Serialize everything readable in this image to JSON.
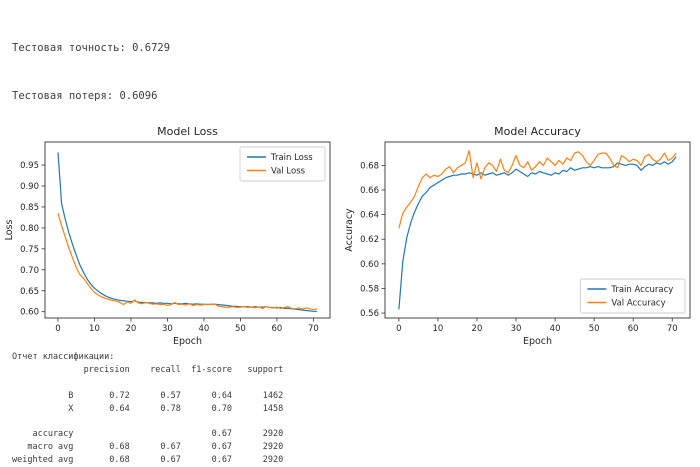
{
  "header": {
    "lines": [
      "Тестовая точность: 0.6729",
      "Тестовая потеря: 0.6096"
    ]
  },
  "colors": {
    "train": "#1f77b4",
    "val": "#ff7f0e",
    "axis_text": "#262626",
    "spine": "#333333",
    "legend_border": "#cccccc"
  },
  "chart_data": [
    {
      "type": "line",
      "title": "Model Loss",
      "xlabel": "Epoch",
      "ylabel": "Loss",
      "xlim": [
        -3.55,
        74.55
      ],
      "ylim": [
        0.585,
        1.005
      ],
      "xticks": [
        0,
        10,
        20,
        30,
        40,
        50,
        60,
        70
      ],
      "yticks": [
        0.6,
        0.65,
        0.7,
        0.75,
        0.8,
        0.85,
        0.9,
        0.95
      ],
      "grid": false,
      "legend_position": "upper-right",
      "x_start": 0,
      "x_step": 1,
      "series": [
        {
          "name": "Train Loss",
          "color": "#1f77b4",
          "values": [
            0.98,
            0.858,
            0.82,
            0.788,
            0.76,
            0.735,
            0.712,
            0.694,
            0.678,
            0.666,
            0.656,
            0.649,
            0.643,
            0.638,
            0.634,
            0.631,
            0.629,
            0.627,
            0.626,
            0.625,
            0.624,
            0.626,
            0.623,
            0.622,
            0.622,
            0.621,
            0.621,
            0.62,
            0.621,
            0.62,
            0.62,
            0.619,
            0.62,
            0.619,
            0.619,
            0.62,
            0.619,
            0.618,
            0.619,
            0.618,
            0.618,
            0.617,
            0.618,
            0.618,
            0.617,
            0.616,
            0.615,
            0.614,
            0.613,
            0.613,
            0.612,
            0.612,
            0.612,
            0.611,
            0.612,
            0.611,
            0.611,
            0.612,
            0.61,
            0.61,
            0.609,
            0.61,
            0.608,
            0.608,
            0.607,
            0.606,
            0.605,
            0.604,
            0.603,
            0.602,
            0.601,
            0.601
          ]
        },
        {
          "name": "Val Loss",
          "color": "#ff7f0e",
          "values": [
            0.835,
            0.805,
            0.778,
            0.752,
            0.728,
            0.706,
            0.689,
            0.68,
            0.668,
            0.656,
            0.646,
            0.64,
            0.635,
            0.632,
            0.629,
            0.627,
            0.625,
            0.622,
            0.617,
            0.624,
            0.62,
            0.628,
            0.621,
            0.619,
            0.622,
            0.62,
            0.618,
            0.619,
            0.617,
            0.618,
            0.615,
            0.617,
            0.622,
            0.617,
            0.618,
            0.616,
            0.619,
            0.615,
            0.617,
            0.616,
            0.617,
            0.618,
            0.617,
            0.618,
            0.613,
            0.612,
            0.61,
            0.611,
            0.612,
            0.61,
            0.611,
            0.612,
            0.61,
            0.611,
            0.609,
            0.612,
            0.608,
            0.612,
            0.61,
            0.609,
            0.611,
            0.608,
            0.61,
            0.612,
            0.608,
            0.607,
            0.609,
            0.606,
            0.609,
            0.607,
            0.605,
            0.607
          ]
        }
      ]
    },
    {
      "type": "line",
      "title": "Model Accuracy",
      "xlabel": "Epoch",
      "ylabel": "Accuracy",
      "xlim": [
        -3.55,
        74.55
      ],
      "ylim": [
        0.556,
        0.699
      ],
      "xticks": [
        0,
        10,
        20,
        30,
        40,
        50,
        60,
        70
      ],
      "yticks": [
        0.56,
        0.58,
        0.6,
        0.62,
        0.64,
        0.66,
        0.68
      ],
      "grid": false,
      "legend_position": "lower-right",
      "x_start": 0,
      "x_step": 1,
      "series": [
        {
          "name": "Train Accuracy",
          "color": "#1f77b4",
          "values": [
            0.563,
            0.602,
            0.621,
            0.633,
            0.642,
            0.649,
            0.655,
            0.658,
            0.662,
            0.664,
            0.666,
            0.668,
            0.67,
            0.671,
            0.672,
            0.672,
            0.673,
            0.673,
            0.674,
            0.673,
            0.672,
            0.674,
            0.672,
            0.673,
            0.674,
            0.672,
            0.673,
            0.674,
            0.672,
            0.674,
            0.677,
            0.675,
            0.673,
            0.671,
            0.674,
            0.673,
            0.675,
            0.674,
            0.673,
            0.672,
            0.674,
            0.673,
            0.676,
            0.675,
            0.678,
            0.676,
            0.677,
            0.678,
            0.678,
            0.679,
            0.678,
            0.679,
            0.678,
            0.678,
            0.678,
            0.679,
            0.682,
            0.681,
            0.68,
            0.681,
            0.681,
            0.68,
            0.676,
            0.679,
            0.681,
            0.68,
            0.682,
            0.681,
            0.683,
            0.681,
            0.683,
            0.687
          ]
        },
        {
          "name": "Val Accuracy",
          "color": "#ff7f0e",
          "values": [
            0.629,
            0.641,
            0.646,
            0.65,
            0.655,
            0.663,
            0.67,
            0.673,
            0.67,
            0.672,
            0.671,
            0.673,
            0.677,
            0.679,
            0.674,
            0.678,
            0.68,
            0.682,
            0.692,
            0.67,
            0.682,
            0.669,
            0.678,
            0.682,
            0.68,
            0.675,
            0.685,
            0.676,
            0.674,
            0.68,
            0.688,
            0.68,
            0.678,
            0.683,
            0.676,
            0.679,
            0.683,
            0.68,
            0.686,
            0.683,
            0.68,
            0.684,
            0.681,
            0.686,
            0.684,
            0.69,
            0.691,
            0.688,
            0.683,
            0.68,
            0.684,
            0.689,
            0.69,
            0.69,
            0.686,
            0.68,
            0.678,
            0.688,
            0.686,
            0.683,
            0.685,
            0.684,
            0.68,
            0.687,
            0.689,
            0.685,
            0.683,
            0.685,
            0.69,
            0.684,
            0.686,
            0.69
          ]
        }
      ]
    }
  ],
  "report": {
    "title": "Отчет классификации:",
    "columns": [
      "precision",
      "recall",
      "f1-score",
      "support"
    ],
    "rows": [
      {
        "label": "B",
        "cells": [
          "0.72",
          "0.57",
          "0.64",
          "1462"
        ]
      },
      {
        "label": "X",
        "cells": [
          "0.64",
          "0.78",
          "0.70",
          "1458"
        ]
      },
      {
        "label": "accuracy",
        "cells": [
          "",
          "",
          "0.67",
          "2920"
        ]
      },
      {
        "label": "macro avg",
        "cells": [
          "0.68",
          "0.67",
          "0.67",
          "2920"
        ]
      },
      {
        "label": "weighted avg",
        "cells": [
          "0.68",
          "0.67",
          "0.67",
          "2920"
        ]
      }
    ]
  }
}
